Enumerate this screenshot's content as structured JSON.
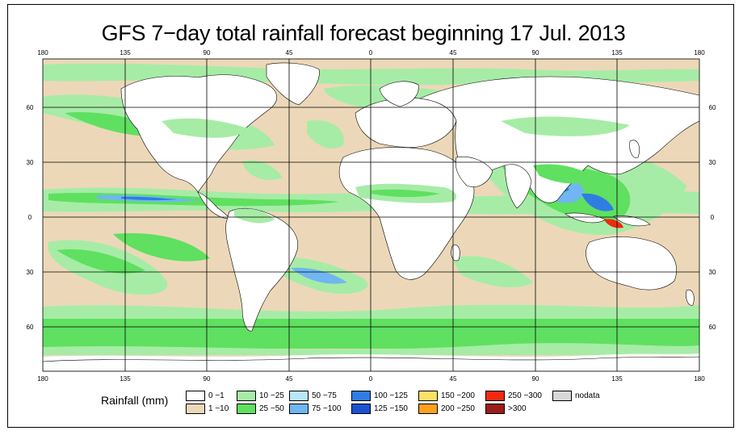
{
  "title": "GFS 7−day total rainfall forecast beginning 17 Jul. 2013",
  "lon_labels": [
    "180",
    "135",
    "90",
    "45",
    "0",
    "45",
    "90",
    "135",
    "180"
  ],
  "lat_labels": [
    "60",
    "30",
    "0",
    "30",
    "60"
  ],
  "legend": {
    "title": "Rainfall (mm)",
    "items": [
      {
        "label": "0 −1",
        "color": "#ffffff"
      },
      {
        "label": "1 −10",
        "color": "#ecd8b8"
      },
      {
        "label": "10 −25",
        "color": "#a6eca6"
      },
      {
        "label": "25 −50",
        "color": "#5fe060"
      },
      {
        "label": "50 −75",
        "color": "#b8e6fa"
      },
      {
        "label": "75 −100",
        "color": "#6fb6f2"
      },
      {
        "label": "100 −125",
        "color": "#2f7de3"
      },
      {
        "label": "125 −150",
        "color": "#1b52d1"
      },
      {
        "label": "150 −200",
        "color": "#ffe066"
      },
      {
        "label": "200 −250",
        "color": "#ffa020"
      },
      {
        "label": "250 −300",
        "color": "#ef2a10"
      },
      {
        "label": ">300",
        "color": "#9b1c1c"
      },
      {
        "label": "nodata",
        "color": "#d8d8d8"
      }
    ]
  },
  "colors": {
    "ocean_dry": "#ecd8b8",
    "land": "#ffffff",
    "coast": "#000000",
    "grid": "#000000"
  }
}
